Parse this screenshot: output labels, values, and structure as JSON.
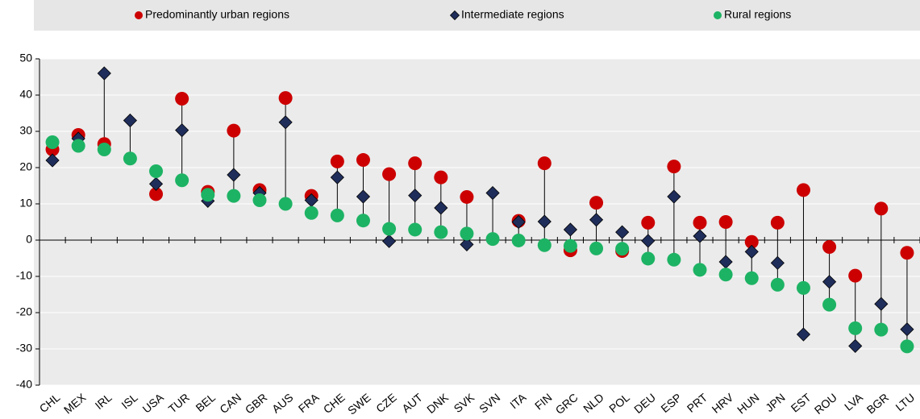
{
  "chart_data": {
    "type": "dot",
    "categories": [
      "CHL",
      "MEX",
      "IRL",
      "ISL",
      "USA",
      "TUR",
      "BEL",
      "CAN",
      "GBR",
      "AUS",
      "FRA",
      "CHE",
      "SWE",
      "CZE",
      "AUT",
      "DNK",
      "SVK",
      "SVN",
      "ITA",
      "FIN",
      "GRC",
      "NLD",
      "POL",
      "DEU",
      "ESP",
      "PRT",
      "HRV",
      "HUN",
      "JPN",
      "EST",
      "ROU",
      "LVA",
      "BGR",
      "LTU"
    ],
    "series": [
      {
        "name": "Predominantly urban regions",
        "color": "#cc0000",
        "marker": "circle",
        "values": [
          25,
          29,
          26.5,
          null,
          12.7,
          39,
          13.3,
          30.2,
          13.8,
          39.2,
          12.2,
          21.7,
          22.1,
          18.2,
          21.2,
          17.3,
          11.9,
          null,
          5.3,
          21.2,
          -2.8,
          10.3,
          -3,
          4.8,
          20.3,
          4.8,
          5,
          -0.5,
          4.8,
          13.8,
          -1.9,
          -9.8,
          8.7,
          -3.5
        ]
      },
      {
        "name": "Intermediate regions",
        "color": "#1f2d5a",
        "marker": "diamond",
        "values": [
          22,
          28,
          46,
          33,
          15.5,
          30.3,
          10.8,
          18,
          13,
          32.5,
          11,
          17.3,
          12,
          -0.3,
          12.3,
          8.9,
          -1.2,
          13,
          5,
          5.1,
          2.9,
          5.6,
          2.2,
          -0.2,
          12,
          1.1,
          -6,
          -3.2,
          -6.3,
          -26,
          -11.5,
          -29.2,
          -17.6,
          -24.6
        ]
      },
      {
        "name": "Rural regions",
        "color": "#1db364",
        "marker": "circle",
        "values": [
          27,
          26,
          25,
          22.5,
          19,
          16.5,
          12.5,
          12.2,
          11,
          10,
          7.5,
          6.8,
          5.4,
          3.1,
          2.9,
          2.2,
          1.8,
          0.3,
          -0.1,
          -1.4,
          -1.6,
          -2.3,
          -2.4,
          -5.1,
          -5.4,
          -8.2,
          -9.5,
          -10.5,
          -12.3,
          -13.2,
          -17.8,
          -24.3,
          -24.7,
          -29.3
        ]
      }
    ],
    "ylim": [
      -40,
      50
    ],
    "yticks": [
      -40,
      -30,
      -20,
      -10,
      0,
      10,
      20,
      30,
      40,
      50
    ],
    "grid": true
  }
}
